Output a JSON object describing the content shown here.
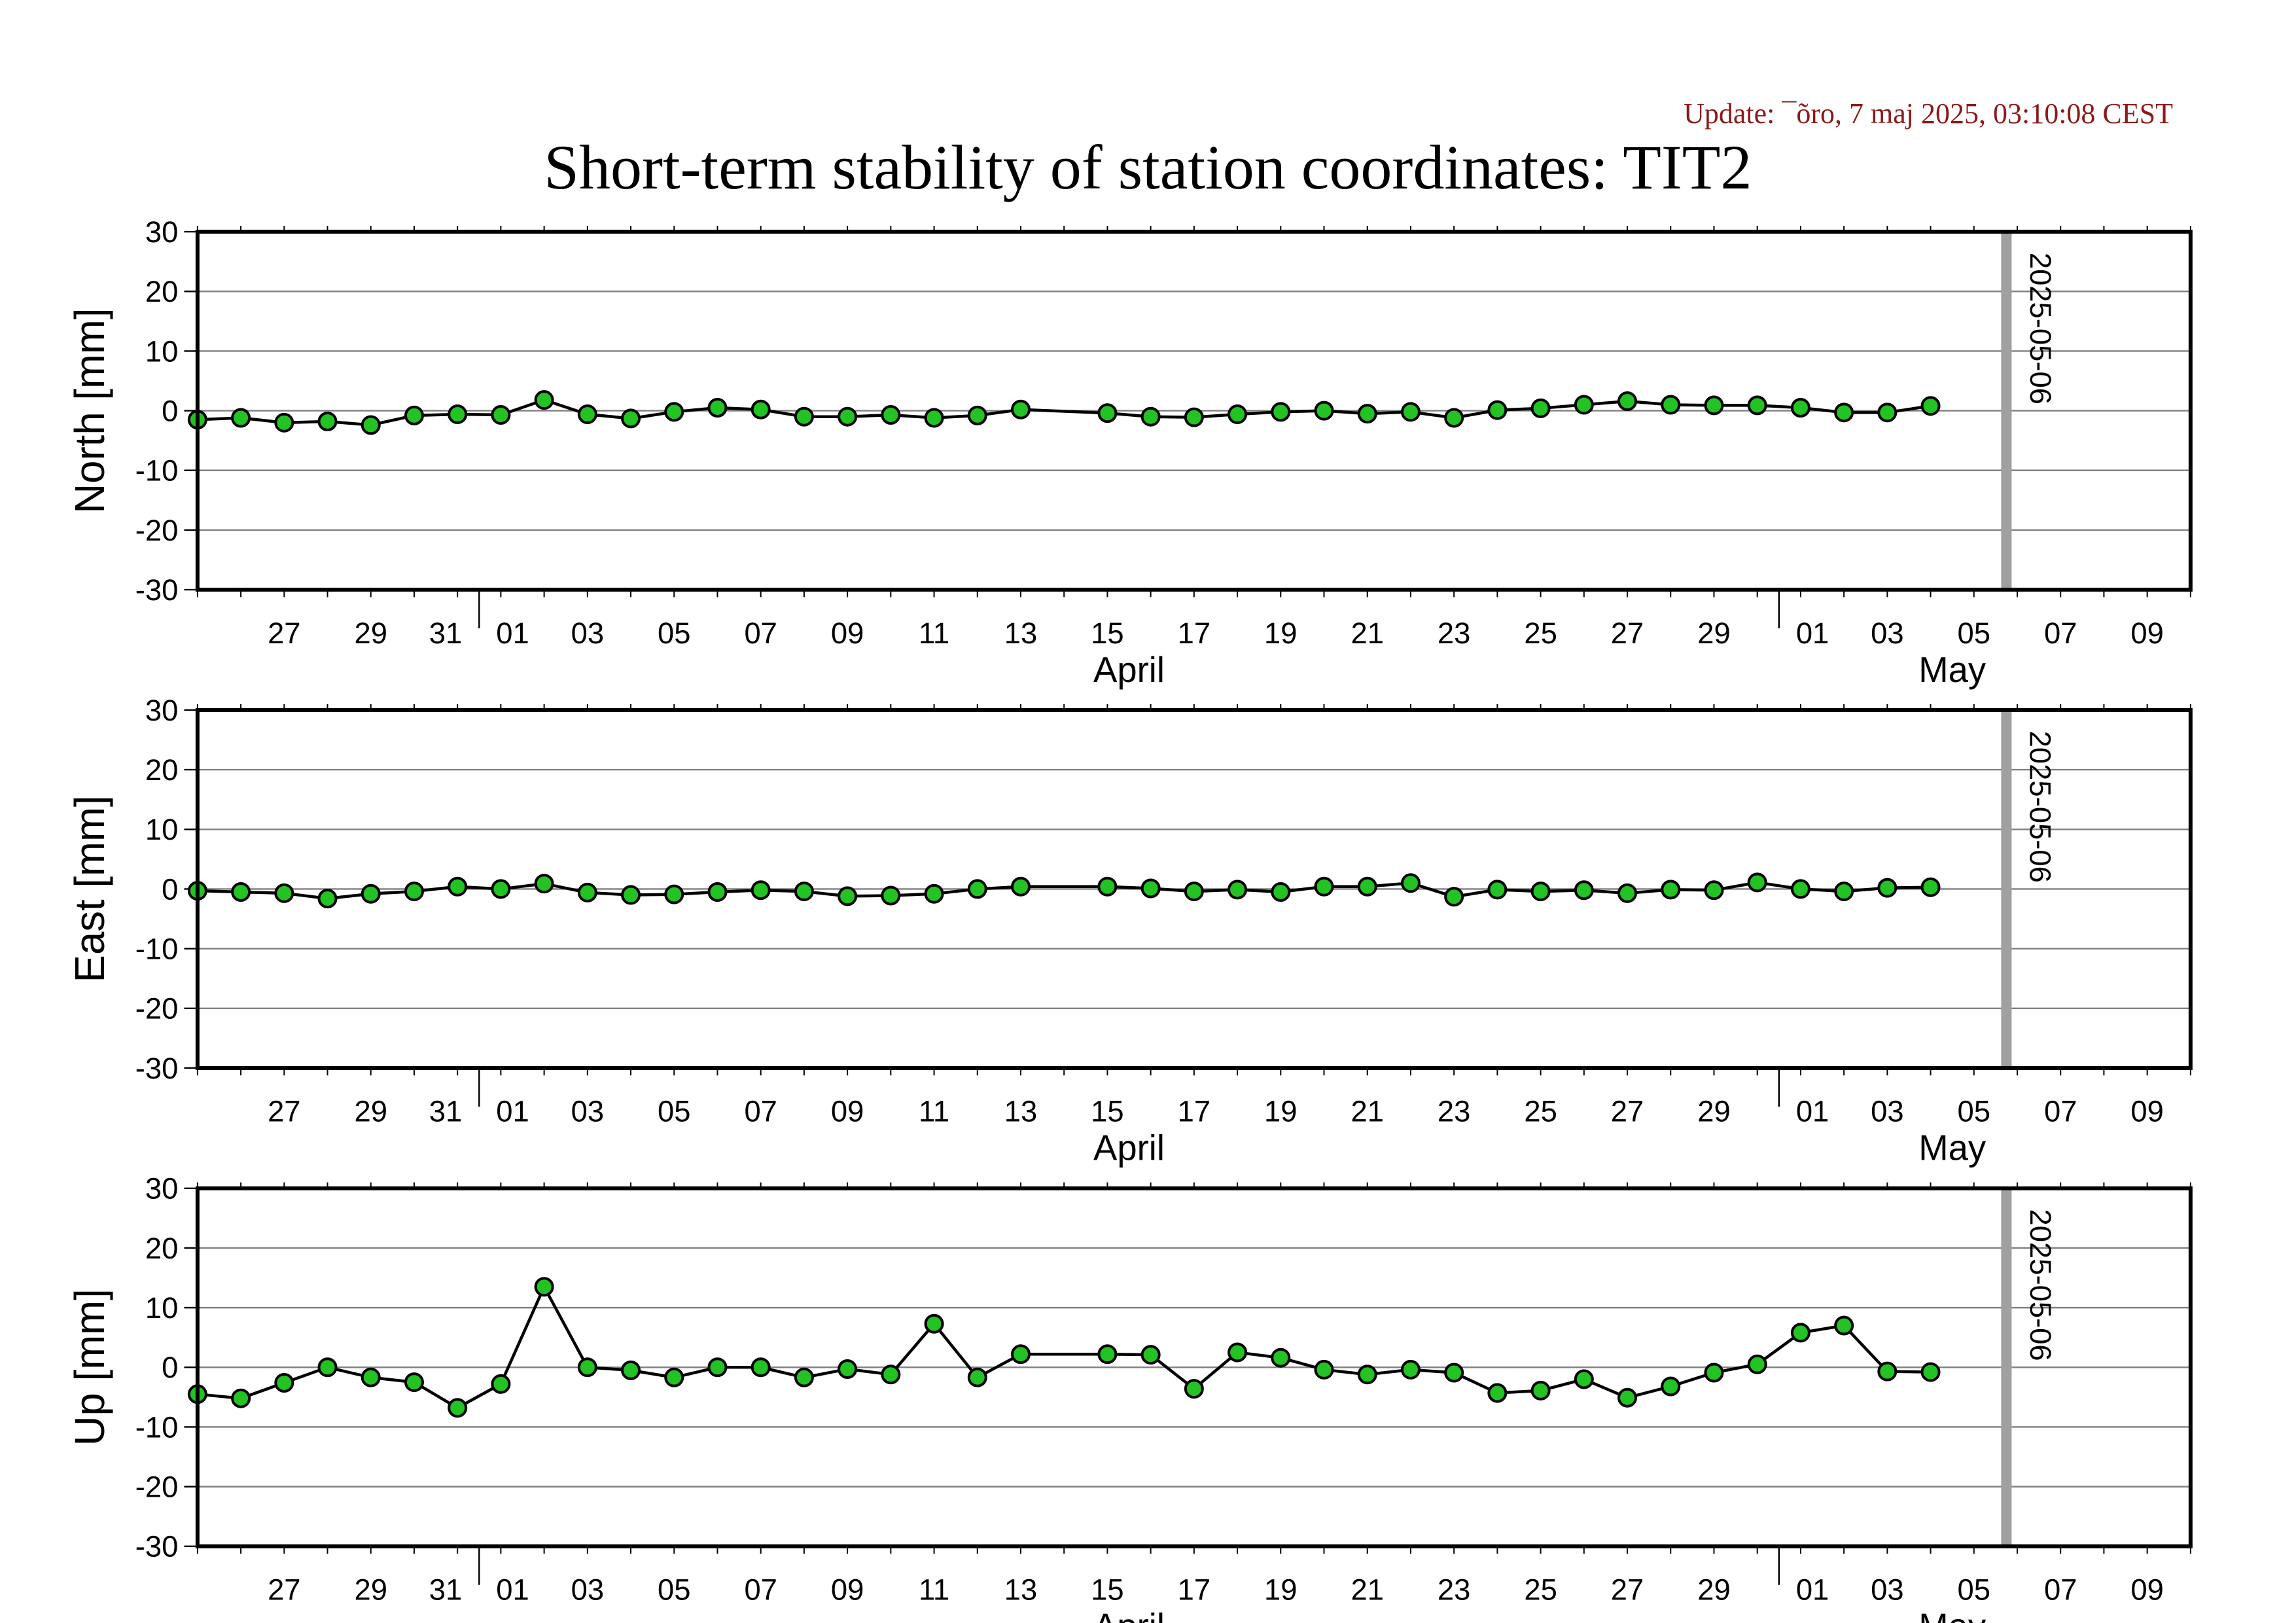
{
  "header": {
    "update_text": "Update: ¯õro, 7 maj 2025, 03:10:08 CEST",
    "title": "Short-term stability of station coordinates: TIT2"
  },
  "colors": {
    "marker_fill": "#22c322",
    "marker_stroke": "#000000",
    "line": "#000000",
    "grid": "#808080",
    "reference_line": "#a0a0a0"
  },
  "chart_data": [
    {
      "type": "line",
      "name": "north",
      "ylabel": "North [mm]",
      "ylim": [
        -30,
        30
      ],
      "yticks": [
        30,
        20,
        10,
        0,
        -10,
        -20,
        -30
      ],
      "grid": true,
      "x_start": "2025-03-25",
      "x_end": "2025-05-10",
      "x_tick_labels": [
        "27",
        "29",
        "31",
        "01",
        "03",
        "05",
        "07",
        "09",
        "11",
        "13",
        "15",
        "17",
        "19",
        "21",
        "23",
        "25",
        "27",
        "29",
        "01",
        "03",
        "05",
        "07",
        "09"
      ],
      "month_labels": [
        "April",
        "May"
      ],
      "reference_date": "2025-05-06",
      "series": [
        {
          "x": [
            "2025-03-25",
            "2025-03-26",
            "2025-03-27",
            "2025-03-28",
            "2025-03-29",
            "2025-03-30",
            "2025-03-31",
            "2025-04-01",
            "2025-04-02",
            "2025-04-03",
            "2025-04-04",
            "2025-04-05",
            "2025-04-06",
            "2025-04-07",
            "2025-04-08",
            "2025-04-09",
            "2025-04-10",
            "2025-04-11",
            "2025-04-12",
            "2025-04-13",
            "2025-04-15",
            "2025-04-16",
            "2025-04-17",
            "2025-04-18",
            "2025-04-19",
            "2025-04-20",
            "2025-04-21",
            "2025-04-22",
            "2025-04-23",
            "2025-04-24",
            "2025-04-25",
            "2025-04-26",
            "2025-04-27",
            "2025-04-28",
            "2025-04-29",
            "2025-04-30",
            "2025-05-01",
            "2025-05-02",
            "2025-05-03",
            "2025-05-04"
          ],
          "values": [
            -1.5,
            -1.2,
            -2,
            -1.8,
            -2.4,
            -0.8,
            -0.6,
            -0.7,
            1.8,
            -0.6,
            -1.3,
            -0.2,
            0.5,
            0.2,
            -1,
            -1,
            -0.7,
            -1.2,
            -0.8,
            0.2,
            -0.4,
            -1,
            -1.1,
            -0.6,
            -0.2,
            0,
            -0.5,
            -0.2,
            -1.2,
            0.1,
            0.4,
            1,
            1.6,
            1,
            0.9,
            0.9,
            0.5,
            -0.3,
            -0.3,
            0.8
          ]
        }
      ]
    },
    {
      "type": "line",
      "name": "east",
      "ylabel": "East [mm]",
      "ylim": [
        -30,
        30
      ],
      "yticks": [
        30,
        20,
        10,
        0,
        -10,
        -20,
        -30
      ],
      "grid": true,
      "x_start": "2025-03-25",
      "x_end": "2025-05-10",
      "x_tick_labels": [
        "27",
        "29",
        "31",
        "01",
        "03",
        "05",
        "07",
        "09",
        "11",
        "13",
        "15",
        "17",
        "19",
        "21",
        "23",
        "25",
        "27",
        "29",
        "01",
        "03",
        "05",
        "07",
        "09"
      ],
      "month_labels": [
        "April",
        "May"
      ],
      "reference_date": "2025-05-06",
      "series": [
        {
          "x": [
            "2025-03-25",
            "2025-03-26",
            "2025-03-27",
            "2025-03-28",
            "2025-03-29",
            "2025-03-30",
            "2025-03-31",
            "2025-04-01",
            "2025-04-02",
            "2025-04-03",
            "2025-04-04",
            "2025-04-05",
            "2025-04-06",
            "2025-04-07",
            "2025-04-08",
            "2025-04-09",
            "2025-04-10",
            "2025-04-11",
            "2025-04-12",
            "2025-04-13",
            "2025-04-15",
            "2025-04-16",
            "2025-04-17",
            "2025-04-18",
            "2025-04-19",
            "2025-04-20",
            "2025-04-21",
            "2025-04-22",
            "2025-04-23",
            "2025-04-24",
            "2025-04-25",
            "2025-04-26",
            "2025-04-27",
            "2025-04-28",
            "2025-04-29",
            "2025-04-30",
            "2025-05-01",
            "2025-05-02",
            "2025-05-03",
            "2025-05-04"
          ],
          "values": [
            -0.3,
            -0.5,
            -0.7,
            -1.6,
            -0.8,
            -0.4,
            0.4,
            0,
            0.9,
            -0.6,
            -1,
            -0.9,
            -0.5,
            -0.2,
            -0.4,
            -1.2,
            -1.1,
            -0.8,
            0,
            0.4,
            0.4,
            0.1,
            -0.4,
            -0.1,
            -0.5,
            0.4,
            0.4,
            1,
            -1.3,
            -0.1,
            -0.4,
            -0.2,
            -0.7,
            -0.1,
            -0.2,
            1.1,
            0,
            -0.4,
            0.2,
            0.3
          ]
        }
      ]
    },
    {
      "type": "line",
      "name": "up",
      "ylabel": "Up [mm]",
      "ylim": [
        -30,
        30
      ],
      "yticks": [
        30,
        20,
        10,
        0,
        -10,
        -20,
        -30
      ],
      "grid": true,
      "x_start": "2025-03-25",
      "x_end": "2025-05-10",
      "x_tick_labels": [
        "27",
        "29",
        "31",
        "01",
        "03",
        "05",
        "07",
        "09",
        "11",
        "13",
        "15",
        "17",
        "19",
        "21",
        "23",
        "25",
        "27",
        "29",
        "01",
        "03",
        "05",
        "07",
        "09"
      ],
      "month_labels": [
        "April",
        "May"
      ],
      "reference_date": "2025-05-06",
      "series": [
        {
          "x": [
            "2025-03-25",
            "2025-03-26",
            "2025-03-27",
            "2025-03-28",
            "2025-03-29",
            "2025-03-30",
            "2025-03-31",
            "2025-04-01",
            "2025-04-02",
            "2025-04-03",
            "2025-04-04",
            "2025-04-05",
            "2025-04-06",
            "2025-04-07",
            "2025-04-08",
            "2025-04-09",
            "2025-04-10",
            "2025-04-11",
            "2025-04-12",
            "2025-04-13",
            "2025-04-15",
            "2025-04-16",
            "2025-04-17",
            "2025-04-18",
            "2025-04-19",
            "2025-04-20",
            "2025-04-21",
            "2025-04-22",
            "2025-04-23",
            "2025-04-24",
            "2025-04-25",
            "2025-04-26",
            "2025-04-27",
            "2025-04-28",
            "2025-04-29",
            "2025-04-30",
            "2025-05-01",
            "2025-05-02",
            "2025-05-03",
            "2025-05-04"
          ],
          "values": [
            -4.5,
            -5.2,
            -2.6,
            0,
            -1.7,
            -2.5,
            -6.8,
            -2.8,
            13.5,
            0,
            -0.5,
            -1.7,
            0,
            0,
            -1.7,
            -0.3,
            -1.2,
            7.3,
            -1.7,
            2.2,
            2.2,
            2.1,
            -3.6,
            2.5,
            1.6,
            -0.4,
            -1.2,
            -0.4,
            -0.9,
            -4.3,
            -3.9,
            -2,
            -5.1,
            -3.2,
            -0.9,
            0.5,
            5.8,
            7,
            -0.7,
            -0.8
          ]
        }
      ]
    }
  ]
}
